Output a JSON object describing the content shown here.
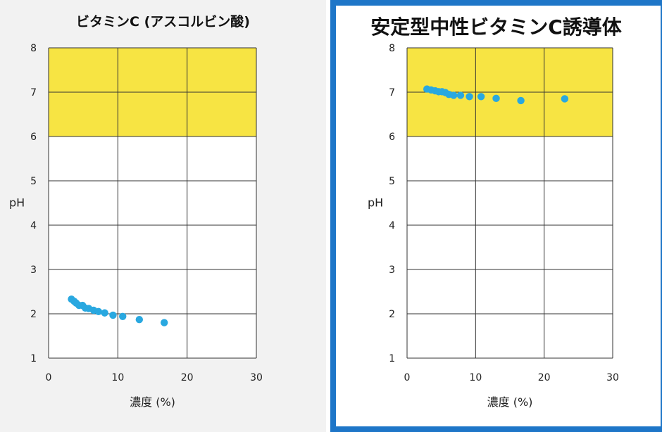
{
  "chart_data": [
    {
      "type": "scatter",
      "title": "ビタミンC (アスコルビン酸)",
      "xlabel": "濃度 (%)",
      "ylabel": "pH",
      "xlim": [
        0,
        30
      ],
      "ylim": [
        1,
        8
      ],
      "x_ticks": [
        "0",
        "10",
        "20",
        "30"
      ],
      "y_ticks": [
        "1",
        "2",
        "3",
        "4",
        "5",
        "6",
        "7",
        "8"
      ],
      "highlight_band": {
        "y_from": 6,
        "y_to": 8,
        "color": "#f7e443"
      },
      "point_color": "#29a8e0",
      "grid": true,
      "points": [
        {
          "x": 3.3,
          "y": 2.33
        },
        {
          "x": 3.7,
          "y": 2.28
        },
        {
          "x": 4.0,
          "y": 2.24
        },
        {
          "x": 4.4,
          "y": 2.19
        },
        {
          "x": 4.9,
          "y": 2.19
        },
        {
          "x": 5.3,
          "y": 2.13
        },
        {
          "x": 5.8,
          "y": 2.12
        },
        {
          "x": 6.5,
          "y": 2.08
        },
        {
          "x": 7.2,
          "y": 2.05
        },
        {
          "x": 8.1,
          "y": 2.02
        },
        {
          "x": 9.3,
          "y": 1.97
        },
        {
          "x": 10.7,
          "y": 1.94
        },
        {
          "x": 13.1,
          "y": 1.87
        },
        {
          "x": 16.7,
          "y": 1.8
        }
      ]
    },
    {
      "type": "scatter",
      "title": "安定型中性ビタミンC誘導体",
      "xlabel": "濃度 (%)",
      "ylabel": "pH",
      "xlim": [
        0,
        30
      ],
      "ylim": [
        1,
        8
      ],
      "x_ticks": [
        "0",
        "10",
        "20",
        "30"
      ],
      "y_ticks": [
        "1",
        "2",
        "3",
        "4",
        "5",
        "6",
        "7",
        "8"
      ],
      "highlight_band": {
        "y_from": 6,
        "y_to": 8,
        "color": "#f7e443"
      },
      "point_color": "#29a8e0",
      "grid": true,
      "points": [
        {
          "x": 2.9,
          "y": 7.07
        },
        {
          "x": 3.5,
          "y": 7.05
        },
        {
          "x": 4.1,
          "y": 7.03
        },
        {
          "x": 4.6,
          "y": 7.01
        },
        {
          "x": 5.1,
          "y": 7.01
        },
        {
          "x": 5.6,
          "y": 6.99
        },
        {
          "x": 6.1,
          "y": 6.95
        },
        {
          "x": 6.8,
          "y": 6.93
        },
        {
          "x": 7.8,
          "y": 6.93
        },
        {
          "x": 9.1,
          "y": 6.9
        },
        {
          "x": 10.8,
          "y": 6.9
        },
        {
          "x": 13.0,
          "y": 6.86
        },
        {
          "x": 16.6,
          "y": 6.81
        },
        {
          "x": 23.0,
          "y": 6.85
        }
      ]
    }
  ]
}
